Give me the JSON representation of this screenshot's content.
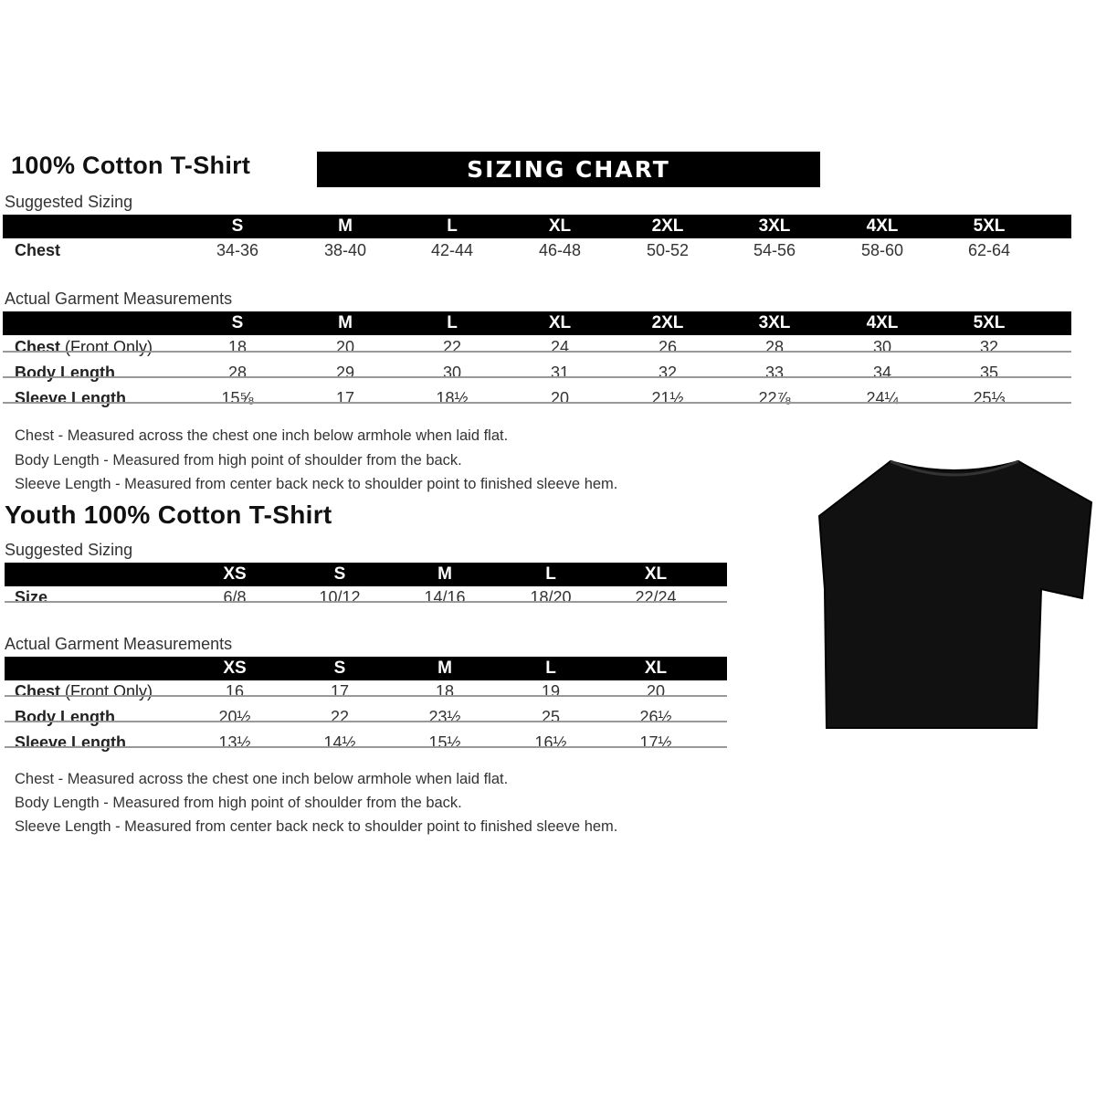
{
  "adult": {
    "title": "100% Cotton T-Shirt",
    "banner": "SIZING CHART",
    "suggested_label": "Suggested Sizing",
    "sizes": [
      "S",
      "M",
      "L",
      "XL",
      "2XL",
      "3XL",
      "4XL",
      "5XL"
    ],
    "suggested_rows": [
      {
        "label": "Chest",
        "values": [
          "34-36",
          "38-40",
          "42-44",
          "46-48",
          "50-52",
          "54-56",
          "58-60",
          "62-64"
        ]
      }
    ],
    "actual_label": "Actual Garment Measurements",
    "actual_rows": [
      {
        "label": "Chest",
        "label_suffix": " (Front Only)",
        "values": [
          "18",
          "20",
          "22",
          "24",
          "26",
          "28",
          "30",
          "32"
        ]
      },
      {
        "label": "Body Length",
        "label_suffix": "",
        "values": [
          "28",
          "29",
          "30",
          "31",
          "32",
          "33",
          "34",
          "35"
        ]
      },
      {
        "label": "Sleeve Length",
        "label_suffix": "",
        "values": [
          "15⅝",
          "17",
          "18½",
          "20",
          "21½",
          "22⅞",
          "24¼",
          "25⅓"
        ]
      }
    ],
    "notes": [
      "Chest - Measured across the chest one inch below armhole when laid flat.",
      "Body Length - Measured from high point of shoulder from the back.",
      "Sleeve Length - Measured from center back neck to shoulder point to finished sleeve hem."
    ]
  },
  "youth": {
    "title": "Youth 100% Cotton T-Shirt",
    "suggested_label": "Suggested Sizing",
    "sizes": [
      "XS",
      "S",
      "M",
      "L",
      "XL"
    ],
    "suggested_rows": [
      {
        "label": "Size",
        "values": [
          "6/8",
          "10/12",
          "14/16",
          "18/20",
          "22/24"
        ]
      }
    ],
    "actual_label": "Actual Garment Measurements",
    "actual_rows": [
      {
        "label": "Chest",
        "label_suffix": " (Front Only)",
        "values": [
          "16",
          "17",
          "18",
          "19",
          "20"
        ]
      },
      {
        "label": "Body Length",
        "label_suffix": "",
        "values": [
          "20½",
          "22",
          "23½",
          "25",
          "26½"
        ]
      },
      {
        "label": "Sleeve Length",
        "label_suffix": "",
        "values": [
          "13½",
          "14½",
          "15½",
          "16½",
          "17½"
        ]
      }
    ],
    "notes": [
      "Chest - Measured across the chest one inch below armhole when laid flat.",
      "Body Length - Measured from high point of shoulder from the back.",
      "Sleeve Length - Measured from center back neck to shoulder point to finished sleeve hem."
    ]
  },
  "image": {
    "icon": "black-tshirt",
    "color": "#111111"
  }
}
